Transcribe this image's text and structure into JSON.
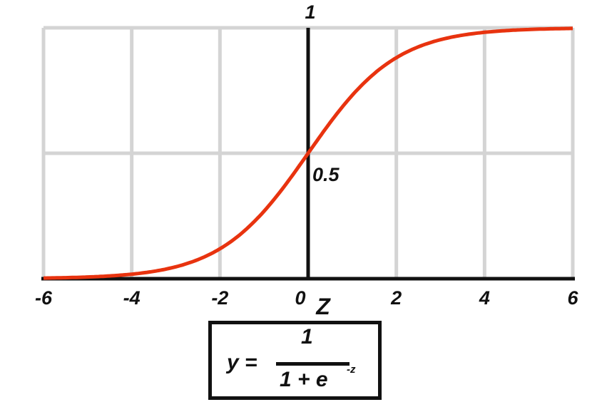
{
  "chart_data": {
    "type": "line",
    "title": "",
    "xlabel": "Z",
    "ylabel": "",
    "xlim": [
      -6,
      6
    ],
    "ylim": [
      0,
      1
    ],
    "x_ticks": [
      "-6",
      "-4",
      "-2",
      "0",
      "2",
      "4",
      "6"
    ],
    "y_ticks": [
      "0.5",
      "1"
    ],
    "grid": true,
    "function": "sigmoid",
    "series": [
      {
        "x": [
          -6,
          -5,
          -4,
          -3,
          -2,
          -1,
          0,
          1,
          2,
          3,
          4,
          5,
          6
        ],
        "y": [
          0.0025,
          0.0067,
          0.018,
          0.047,
          0.119,
          0.269,
          0.5,
          0.731,
          0.881,
          0.953,
          0.982,
          0.993,
          0.9975
        ]
      }
    ],
    "colors": {
      "curve": "#e8330f",
      "grid": "#d4d4d4",
      "axis": "#111111"
    }
  },
  "formula": {
    "lhs": "y =",
    "numerator": "1",
    "denominator": "1 + e",
    "exponent": "-z"
  }
}
